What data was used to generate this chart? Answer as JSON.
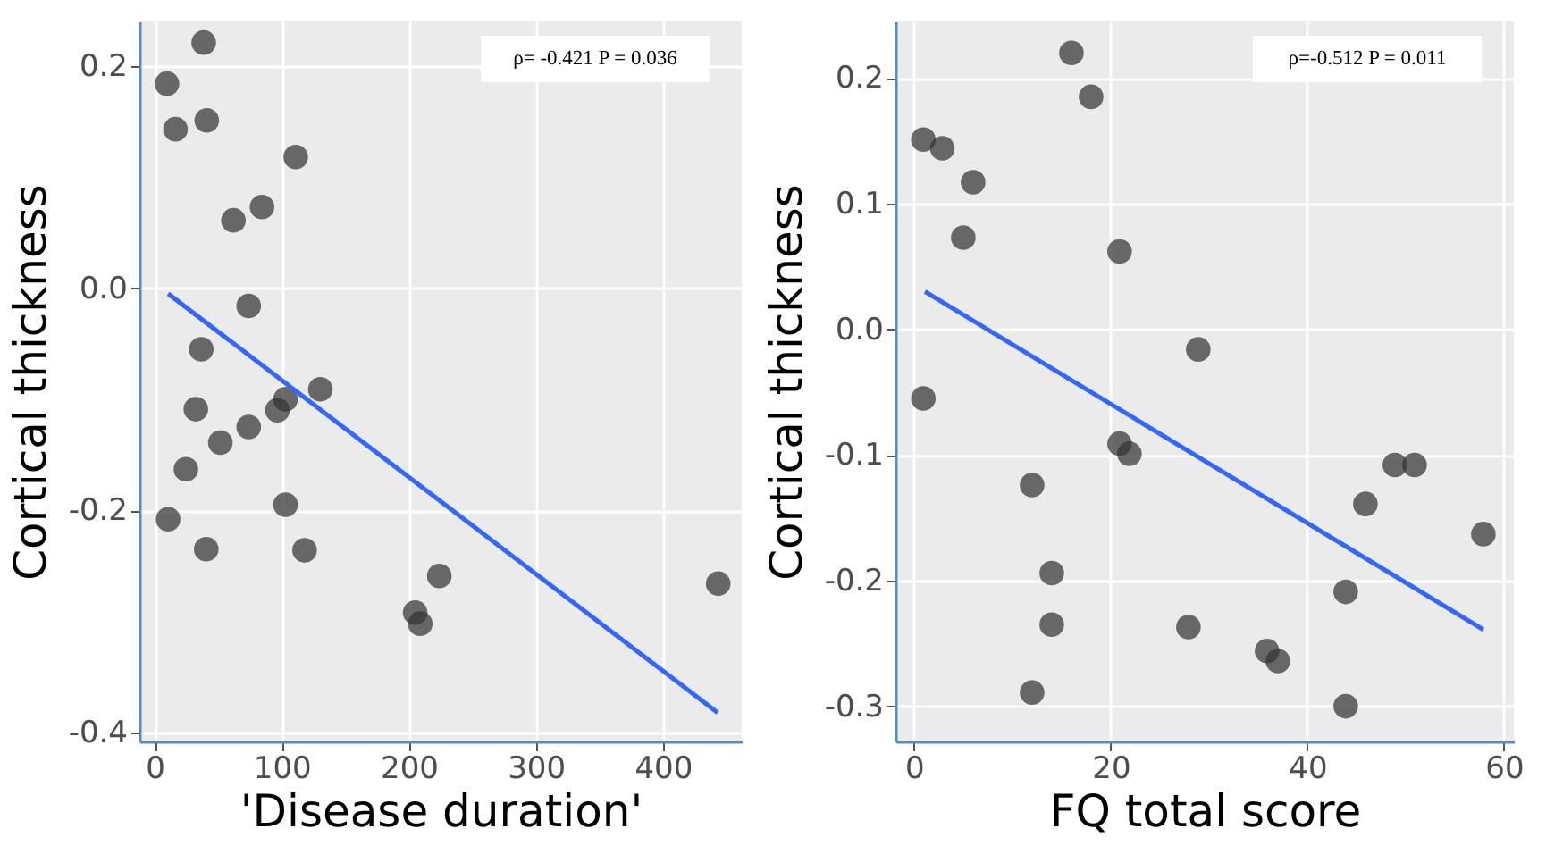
{
  "chart_data": [
    {
      "type": "scatter",
      "xlabel": "'Disease duration'",
      "ylabel": "Cortical thickness",
      "annotations": [
        "ρ= -0.421 P = 0.036"
      ],
      "xlim": [
        -12,
        462
      ],
      "xticks": [
        0,
        100,
        200,
        300,
        400
      ],
      "ylim": [
        -0.408,
        0.24
      ],
      "yticks": [
        {
          "value": -0.4,
          "label": "-0.4"
        },
        {
          "value": -0.2,
          "label": "-0.2"
        },
        {
          "value": 0,
          "label": "0.0"
        },
        {
          "value": 0.2,
          "label": "0.2"
        }
      ],
      "grid": true,
      "series": [
        {
          "marker": "circle",
          "color": "#333333",
          "x": [
            9.7,
            38.6,
            16.4,
            41,
            111,
            62,
            84.5,
            74,
            36.7,
            32.4,
            74,
            51.7,
            24.6,
            10.6,
            40.6,
            103,
            118,
            96.6,
            103,
            130.4,
            224,
            205,
            209,
            443.5
          ],
          "values": [
            0.184,
            0.221,
            0.143,
            0.151,
            0.118,
            0.061,
            0.073,
            -0.016,
            -0.055,
            -0.109,
            -0.125,
            -0.139,
            -0.163,
            -0.208,
            -0.235,
            -0.195,
            -0.236,
            -0.11,
            -0.1,
            -0.091,
            -0.259,
            -0.292,
            -0.302,
            -0.266
          ]
        },
        {
          "type": "line",
          "color": "#3366ff",
          "x": [
            10.6,
            443
          ],
          "values": [
            -0.005,
            -0.382
          ]
        }
      ]
    },
    {
      "type": "scatter",
      "xlabel": "FQ total score",
      "ylabel": "Cortical thickness",
      "annotations": [
        "ρ=-0.512 P = 0.011"
      ],
      "xlim": [
        -1.9,
        61
      ],
      "xticks": [
        0,
        20,
        40,
        60
      ],
      "ylim": [
        -0.328,
        0.245
      ],
      "yticks": [
        {
          "value": -0.3,
          "label": "-0.3"
        },
        {
          "value": -0.2,
          "label": "-0.2"
        },
        {
          "value": -0.1,
          "label": "-0.1"
        },
        {
          "value": 0,
          "label": "0.0"
        },
        {
          "value": 0.1,
          "label": "0.1"
        },
        {
          "value": 0.2,
          "label": "0.2"
        }
      ],
      "grid": true,
      "series": [
        {
          "marker": "circle",
          "color": "#333333",
          "x": [
            0.94,
            2.87,
            6.0,
            5.0,
            16.0,
            18.0,
            20.9,
            0.94,
            28.9,
            20.9,
            21.9,
            12.0,
            14.0,
            14.0,
            12.0,
            27.9,
            35.9,
            37.0,
            43.9,
            43.9,
            45.9,
            48.9,
            50.9,
            57.9
          ],
          "values": [
            0.151,
            0.144,
            0.117,
            0.073,
            0.22,
            0.185,
            0.062,
            -0.055,
            -0.016,
            -0.091,
            -0.099,
            -0.124,
            -0.194,
            -0.235,
            -0.289,
            -0.237,
            -0.256,
            -0.264,
            -0.209,
            -0.3,
            -0.139,
            -0.108,
            -0.108,
            -0.163
          ]
        },
        {
          "type": "line",
          "color": "#3366ff",
          "x": [
            1.1,
            57.9
          ],
          "values": [
            0.03,
            -0.239
          ]
        }
      ]
    }
  ]
}
